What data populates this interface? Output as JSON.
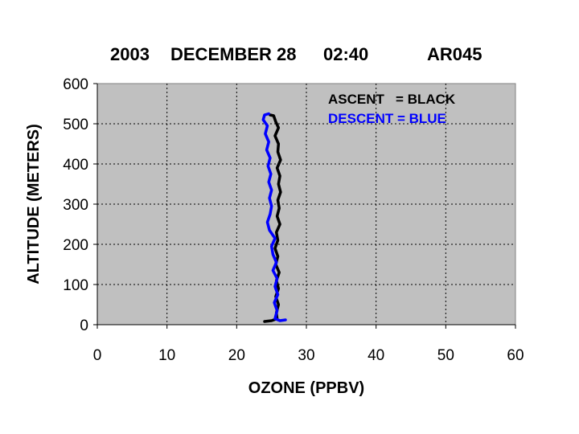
{
  "chart_data": {
    "type": "line",
    "title_parts": [
      "2003",
      "DECEMBER 28",
      "02:40",
      "AR045"
    ],
    "xlabel": "OZONE (PPBV)",
    "ylabel": "ALTITUDE (METERS)",
    "xlim": [
      0,
      60
    ],
    "ylim": [
      0,
      600
    ],
    "xticks": [
      "0",
      "10",
      "20",
      "30",
      "40",
      "50",
      "60"
    ],
    "yticks": [
      "0",
      "100",
      "200",
      "300",
      "400",
      "500",
      "600"
    ],
    "grid": true,
    "plot_background": "#c0c0c0",
    "legend_placement": "top-right",
    "legend_text": [
      "ASCENT   = BLACK",
      "DESCENT = BLUE"
    ],
    "series": [
      {
        "color": "#000000",
        "points": [
          [
            24.0,
            8
          ],
          [
            25.0,
            10
          ],
          [
            25.8,
            15
          ],
          [
            25.7,
            30
          ],
          [
            26.0,
            50
          ],
          [
            25.6,
            70
          ],
          [
            26.0,
            90
          ],
          [
            25.7,
            110
          ],
          [
            26.1,
            130
          ],
          [
            25.6,
            150
          ],
          [
            25.9,
            170
          ],
          [
            25.5,
            190
          ],
          [
            25.9,
            210
          ],
          [
            25.7,
            230
          ],
          [
            26.2,
            250
          ],
          [
            25.8,
            270
          ],
          [
            26.1,
            290
          ],
          [
            25.9,
            310
          ],
          [
            26.3,
            330
          ],
          [
            26.0,
            350
          ],
          [
            26.2,
            370
          ],
          [
            25.8,
            390
          ],
          [
            26.3,
            410
          ],
          [
            25.9,
            430
          ],
          [
            26.0,
            450
          ],
          [
            25.5,
            470
          ],
          [
            26.0,
            490
          ],
          [
            25.6,
            505
          ],
          [
            25.3,
            520
          ],
          [
            24.8,
            522
          ]
        ]
      },
      {
        "color": "#0000ff",
        "points": [
          [
            27.0,
            12
          ],
          [
            26.2,
            10
          ],
          [
            25.5,
            15
          ],
          [
            25.8,
            35
          ],
          [
            25.4,
            55
          ],
          [
            25.9,
            75
          ],
          [
            25.5,
            95
          ],
          [
            25.8,
            115
          ],
          [
            25.2,
            135
          ],
          [
            25.7,
            155
          ],
          [
            25.2,
            175
          ],
          [
            25.0,
            195
          ],
          [
            25.5,
            215
          ],
          [
            24.7,
            235
          ],
          [
            24.4,
            255
          ],
          [
            24.8,
            275
          ],
          [
            25.0,
            295
          ],
          [
            24.7,
            315
          ],
          [
            25.0,
            335
          ],
          [
            24.6,
            355
          ],
          [
            24.9,
            375
          ],
          [
            24.5,
            395
          ],
          [
            24.8,
            415
          ],
          [
            24.3,
            435
          ],
          [
            24.6,
            455
          ],
          [
            24.1,
            475
          ],
          [
            24.4,
            495
          ],
          [
            23.8,
            510
          ],
          [
            24.0,
            522
          ],
          [
            24.6,
            525
          ]
        ]
      }
    ]
  }
}
